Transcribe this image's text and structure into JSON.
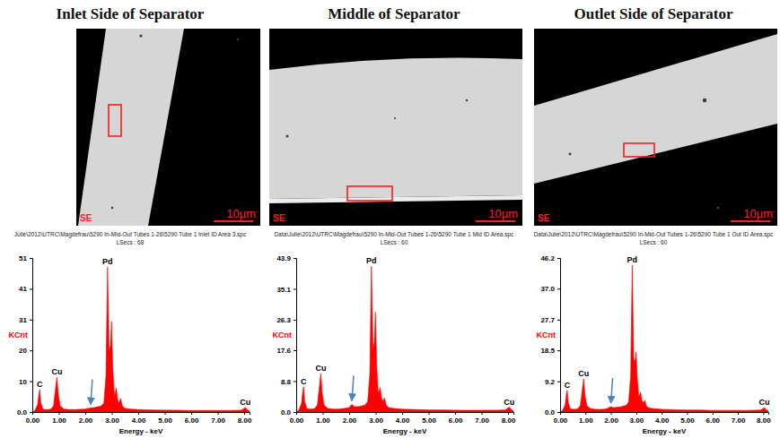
{
  "chart_data": [
    {
      "type": "area",
      "title": "Inlet Side of Separator",
      "image_labels": [
        "SE",
        "10µm"
      ],
      "subtitle": [
        "Julie\\2012\\UTRC\\Magdefrau\\5290 In-Mid-Out Tubes 1-26\\5290 Tube 1 Inlet ID Area 3.spc",
        "LSecs : 68"
      ],
      "xlabel": "Energy - keV",
      "ylabel": "KCnt",
      "color": "#ff0000",
      "x": [
        0.0,
        0.1,
        0.2,
        0.25,
        0.28,
        0.32,
        0.4,
        0.5,
        0.6,
        0.7,
        0.8,
        0.88,
        0.93,
        0.98,
        1.05,
        1.2,
        1.4,
        1.6,
        1.8,
        2.0,
        2.1,
        2.2,
        2.3,
        2.4,
        2.5,
        2.6,
        2.7,
        2.78,
        2.84,
        2.9,
        2.95,
        2.99,
        3.04,
        3.1,
        3.17,
        3.22,
        3.28,
        3.33,
        3.4,
        3.5,
        3.7,
        4.0,
        4.5,
        5.0,
        5.5,
        6.0,
        6.5,
        7.0,
        7.5,
        7.9,
        8.04,
        8.15,
        8.2
      ],
      "values": [
        0,
        0.5,
        2.5,
        6,
        7.5,
        3,
        1,
        0.8,
        0.8,
        1,
        2,
        8,
        11.5,
        6,
        2,
        1,
        0.8,
        0.8,
        0.9,
        1,
        1.2,
        1.3,
        1.4,
        1.6,
        1.8,
        2,
        3,
        12,
        48,
        20,
        22,
        30,
        14,
        5,
        8,
        4,
        3,
        4.5,
        2,
        1.2,
        1,
        0.8,
        0.7,
        0.6,
        0.6,
        0.5,
        0.5,
        0.5,
        0.5,
        0.6,
        1.5,
        0.5,
        0.4
      ],
      "xlim": [
        0,
        8.2
      ],
      "ylim": [
        0,
        51
      ],
      "xticks": [
        {
          "value": 0,
          "label": "0.00"
        },
        {
          "value": 1,
          "label": "1.00"
        },
        {
          "value": 2,
          "label": "2.00"
        },
        {
          "value": 3,
          "label": "3.00"
        },
        {
          "value": 4,
          "label": "4.00"
        },
        {
          "value": 5,
          "label": "5.00"
        },
        {
          "value": 6,
          "label": "6.00"
        },
        {
          "value": 7,
          "label": "7.00"
        },
        {
          "value": 8,
          "label": "8.00"
        }
      ],
      "yticks": [
        {
          "value": 0,
          "label": "0.0"
        },
        {
          "value": 10.2,
          "label": "10"
        },
        {
          "value": 20.4,
          "label": "20"
        },
        {
          "value": 30.6,
          "label": "31"
        },
        {
          "value": 40.8,
          "label": "41"
        },
        51
      ],
      "annotations": [
        {
          "text": "C",
          "x": 0.28,
          "y": 7.5
        },
        {
          "text": "Cu",
          "x": 0.93,
          "y": 11.5
        },
        {
          "text": "Pd",
          "x": 2.84,
          "y": 48
        },
        {
          "text": "Cu",
          "x": 8.04,
          "y": 1.5
        }
      ],
      "arrows": [
        {
          "x": 2.2,
          "y": 1.3
        }
      ]
    },
    {
      "type": "area",
      "title": "Middle of Separator",
      "image_labels": [
        "SE",
        "10µm"
      ],
      "subtitle": [
        "Data\\Julie\\2012\\UTRC\\Magdefrau\\5290 In-Mid-Out Tubes 1-26\\5290 Tube 1 Mid ID Area.spc",
        "LSecs : 60"
      ],
      "xlabel": "Energy - keV",
      "ylabel": "KCnt",
      "color": "#ff0000",
      "x": [
        0.0,
        0.1,
        0.2,
        0.25,
        0.28,
        0.32,
        0.4,
        0.5,
        0.6,
        0.7,
        0.8,
        0.88,
        0.93,
        0.98,
        1.05,
        1.2,
        1.4,
        1.6,
        1.8,
        2.0,
        2.1,
        2.2,
        2.3,
        2.4,
        2.5,
        2.6,
        2.7,
        2.78,
        2.84,
        2.9,
        2.95,
        2.99,
        3.04,
        3.1,
        3.17,
        3.22,
        3.28,
        3.33,
        3.4,
        3.5,
        3.7,
        4.0,
        4.5,
        5.0,
        5.5,
        6.0,
        6.5,
        7.0,
        7.5,
        7.9,
        8.04,
        8.15,
        8.2
      ],
      "values": [
        0,
        0.5,
        2.5,
        6,
        7.2,
        3,
        1,
        0.8,
        0.8,
        1,
        2,
        7.5,
        11,
        5.5,
        2,
        1,
        0.8,
        0.8,
        1,
        1.3,
        2.2,
        1.5,
        1.5,
        1.6,
        1.8,
        2,
        3,
        11,
        41.5,
        18,
        20,
        28.5,
        13,
        5,
        7,
        4,
        3,
        4,
        2,
        1.2,
        1,
        0.8,
        0.7,
        0.6,
        0.6,
        0.5,
        0.5,
        0.5,
        0.5,
        0.6,
        1.4,
        0.5,
        0.4
      ],
      "xlim": [
        0,
        8.2
      ],
      "ylim": [
        0,
        43.9
      ],
      "xticks": [
        {
          "value": 0,
          "label": "0.00"
        },
        {
          "value": 1,
          "label": "1.00"
        },
        {
          "value": 2,
          "label": "2.00"
        },
        {
          "value": 3,
          "label": "3.00"
        },
        {
          "value": 4,
          "label": "4.00"
        },
        {
          "value": 5,
          "label": "5.00"
        },
        {
          "value": 6,
          "label": "6.00"
        },
        {
          "value": 7,
          "label": "7.00"
        },
        {
          "value": 8,
          "label": "8.00"
        }
      ],
      "yticks": [
        {
          "value": 0,
          "label": "0.0"
        },
        8.8,
        17.6,
        26.3,
        35.1,
        43.9
      ],
      "annotations": [
        {
          "text": "C",
          "x": 0.28,
          "y": 7.2
        },
        {
          "text": "Cu",
          "x": 0.93,
          "y": 11
        },
        {
          "text": "Pd",
          "x": 2.84,
          "y": 41.5
        },
        {
          "text": "Cu",
          "x": 8.04,
          "y": 1.4
        }
      ],
      "arrows": [
        {
          "x": 2.1,
          "y": 2.2
        }
      ]
    },
    {
      "type": "area",
      "title": "Outlet Side of Separator",
      "image_labels": [
        "SE",
        "10µm"
      ],
      "subtitle": [
        "Data\\Julie\\2012\\UTRC\\Magdefrau\\5290 In-Mid-Out Tubes 1-26\\5290 Tube 1 Out ID Area.spc",
        "LSecs : 60"
      ],
      "xlabel": "Energy - keV",
      "ylabel": "KCnt",
      "color": "#ff0000",
      "x": [
        0.0,
        0.1,
        0.2,
        0.25,
        0.28,
        0.32,
        0.4,
        0.5,
        0.6,
        0.7,
        0.8,
        0.88,
        0.93,
        0.98,
        1.05,
        1.2,
        1.4,
        1.6,
        1.8,
        2.0,
        2.1,
        2.2,
        2.3,
        2.4,
        2.5,
        2.6,
        2.7,
        2.78,
        2.84,
        2.9,
        2.95,
        2.99,
        3.04,
        3.1,
        3.17,
        3.22,
        3.28,
        3.33,
        3.4,
        3.5,
        3.7,
        4.0,
        4.5,
        5.0,
        5.5,
        6.0,
        6.5,
        7.0,
        7.5,
        7.9,
        8.04,
        8.15,
        8.2
      ],
      "values": [
        0,
        0.5,
        2.2,
        5.5,
        6.5,
        2.8,
        1,
        0.8,
        0.8,
        1,
        2,
        7,
        10,
        5,
        2,
        1,
        0.8,
        0.8,
        0.9,
        1.6,
        1.3,
        1.4,
        1.5,
        1.6,
        1.8,
        2,
        3,
        11,
        44,
        16,
        15,
        18,
        10,
        4.5,
        6,
        3.5,
        2.8,
        3.5,
        1.8,
        1.2,
        1,
        0.8,
        0.7,
        0.6,
        0.6,
        0.5,
        0.5,
        0.5,
        0.5,
        0.6,
        1.3,
        0.5,
        0.4
      ],
      "xlim": [
        0,
        8.2
      ],
      "ylim": [
        0,
        46.2
      ],
      "xticks": [
        {
          "value": 0,
          "label": "0.00"
        },
        {
          "value": 1,
          "label": "1.00"
        },
        {
          "value": 2,
          "label": "2.00"
        },
        {
          "value": 3,
          "label": "3.00"
        },
        {
          "value": 4,
          "label": "4.00"
        },
        {
          "value": 5,
          "label": "5.00"
        },
        {
          "value": 6,
          "label": "6.00"
        },
        {
          "value": 7,
          "label": "7.00"
        },
        {
          "value": 8,
          "label": "8.00"
        }
      ],
      "yticks": [
        {
          "value": 0,
          "label": "0.0"
        },
        9.2,
        18.5,
        27.7,
        {
          "value": 37,
          "label": "37.0"
        },
        46.2
      ],
      "annotations": [
        {
          "text": "C",
          "x": 0.28,
          "y": 6.5
        },
        {
          "text": "Cu",
          "x": 0.93,
          "y": 10
        },
        {
          "text": "Pd",
          "x": 2.84,
          "y": 44
        },
        {
          "text": "Cu",
          "x": 8.04,
          "y": 1.3
        }
      ],
      "arrows": [
        {
          "x": 2.0,
          "y": 1.6
        }
      ]
    }
  ]
}
